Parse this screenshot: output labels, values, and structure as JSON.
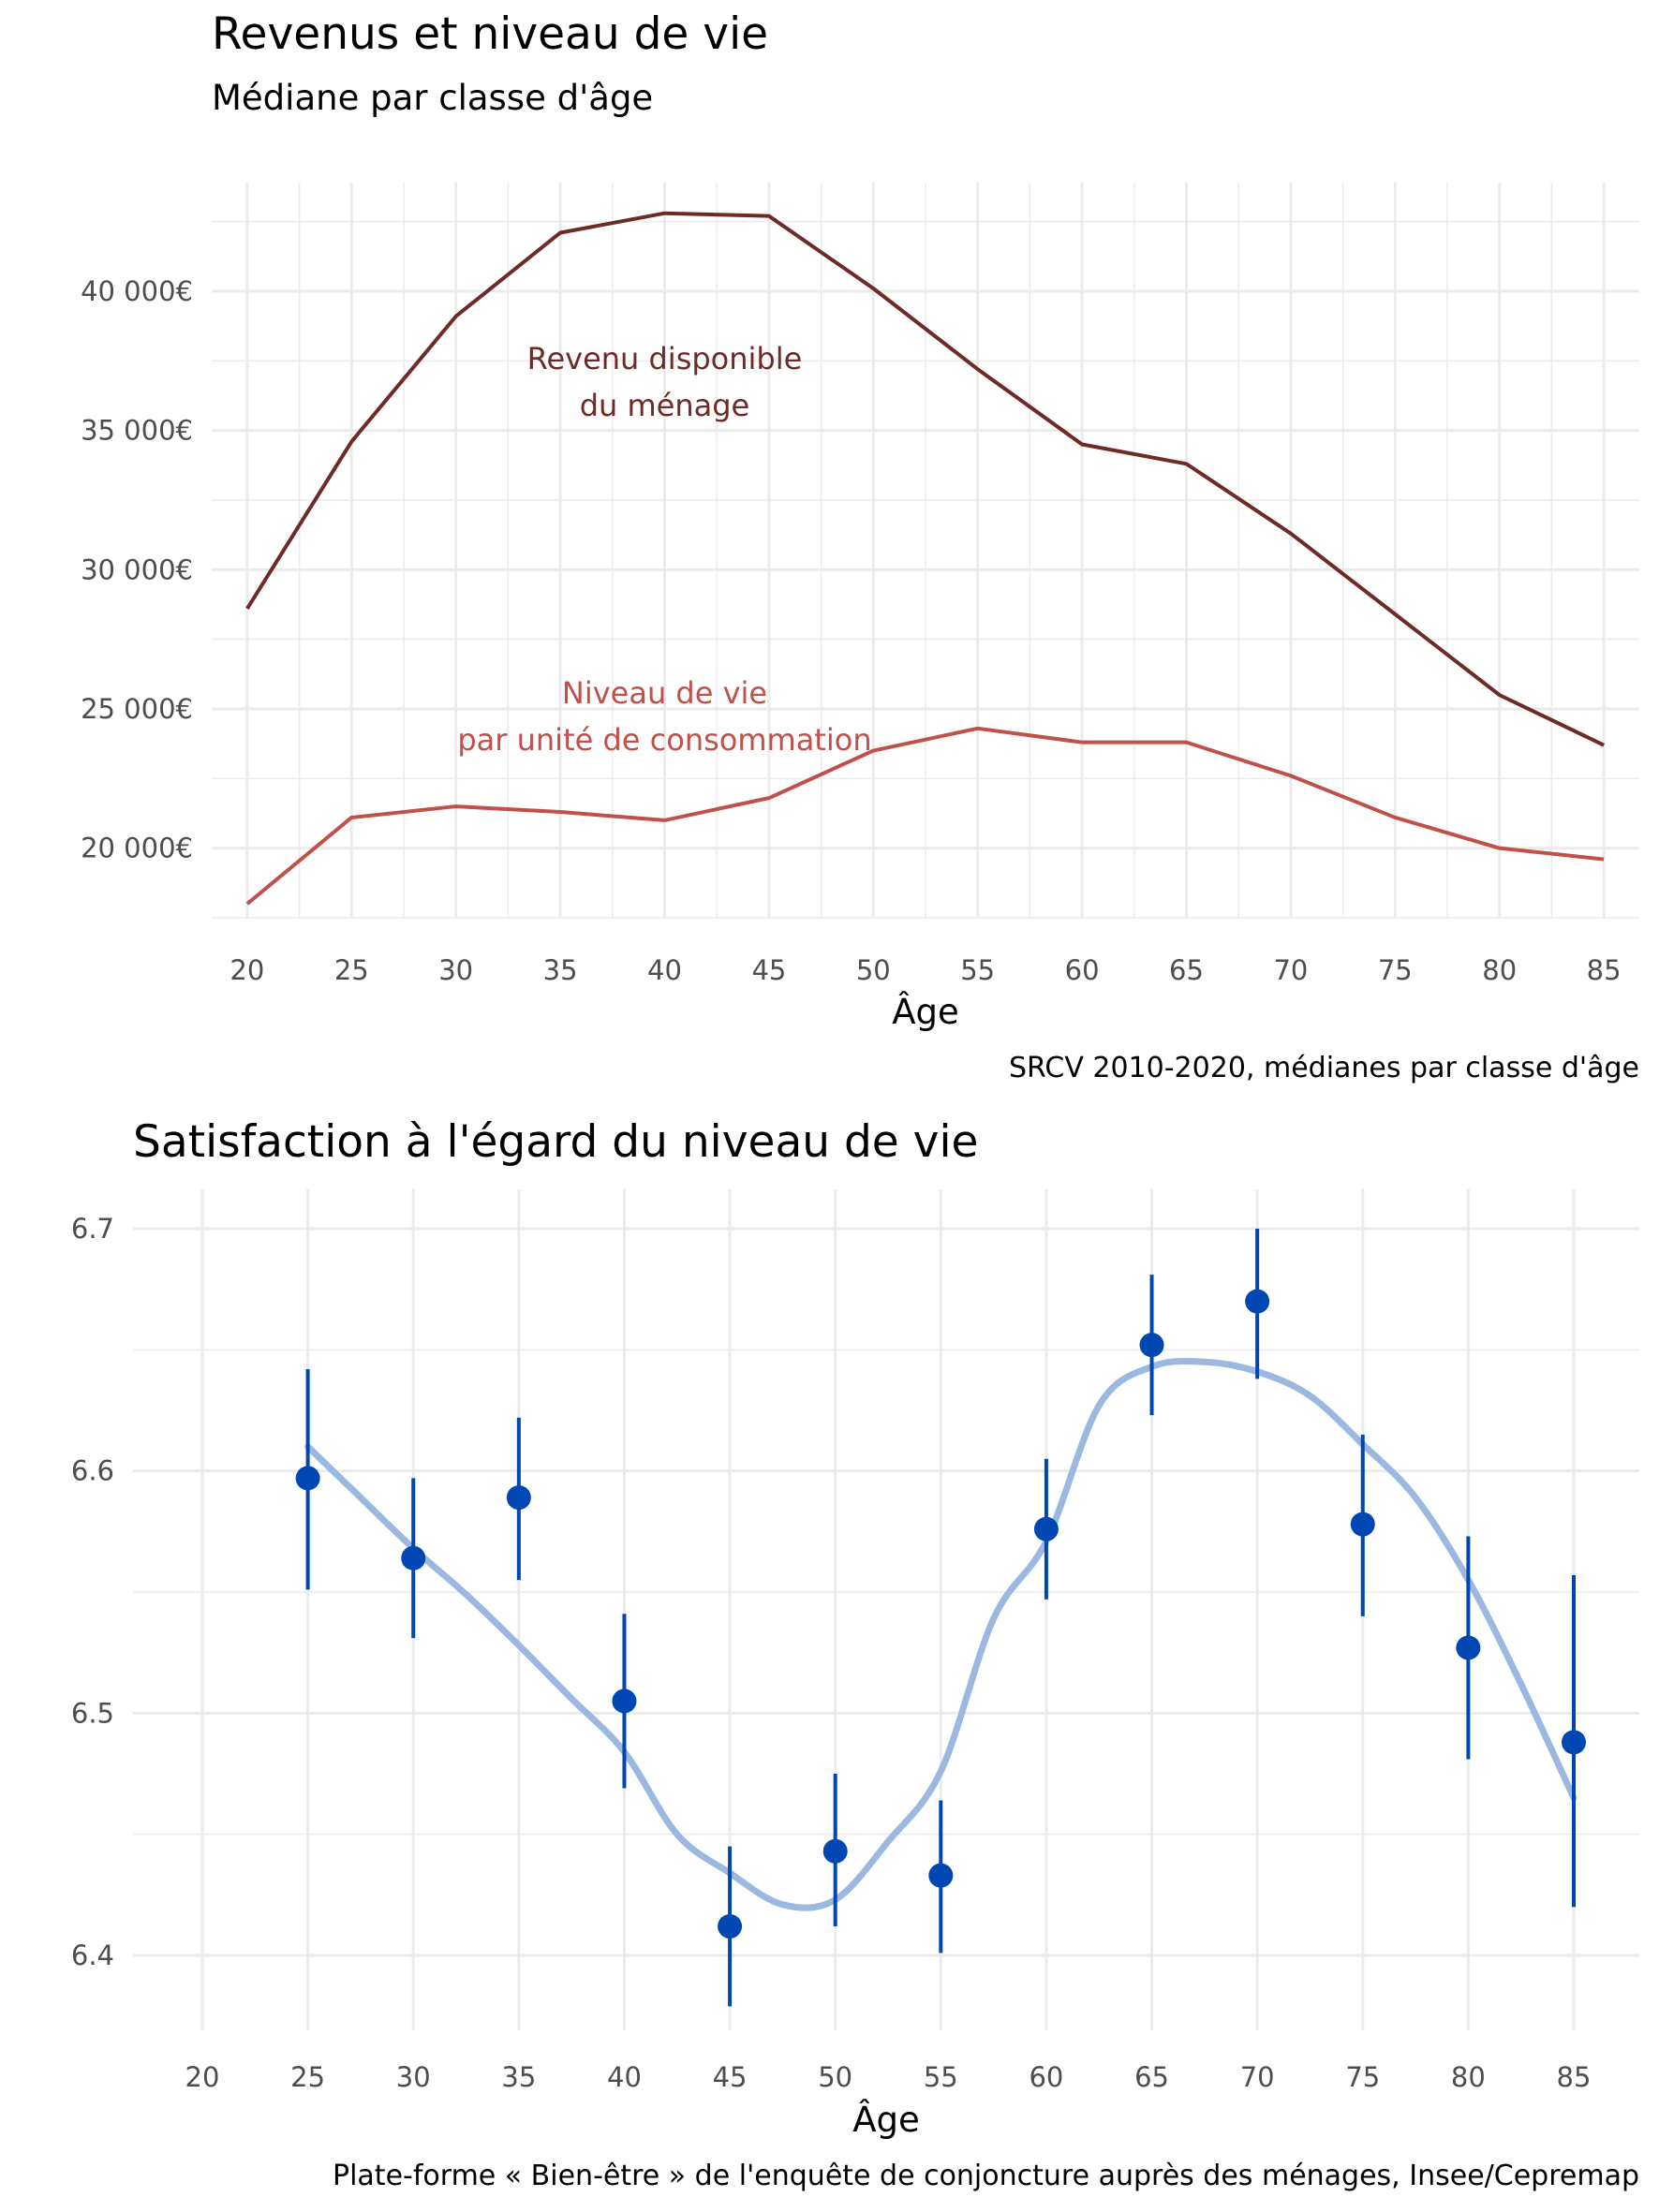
{
  "colors": {
    "revenu": "#6e2a25",
    "niveau": "#c0504a",
    "points": "#0047b3",
    "smooth": "#9bb8e0",
    "grid": "#ebebeb",
    "tick_text": "#4d4d4d"
  },
  "chart_data": [
    {
      "type": "line",
      "title": "Revenus et niveau de vie",
      "subtitle": "Médiane par classe d'âge",
      "xlabel": "Âge",
      "ylabel": "",
      "caption": "SRCV 2010-2020, médianes par classe d'âge",
      "x": [
        20,
        25,
        30,
        35,
        40,
        45,
        50,
        55,
        60,
        65,
        70,
        75,
        80,
        85
      ],
      "xlim": [
        18.3,
        86.7
      ],
      "ylim": [
        17500,
        43900
      ],
      "y_ticks": [
        20000,
        25000,
        30000,
        35000,
        40000
      ],
      "y_tick_labels": [
        "20 000€",
        "25 000€",
        "30 000€",
        "35 000€",
        "40 000€"
      ],
      "x_tick_labels": [
        "20",
        "25",
        "30",
        "35",
        "40",
        "45",
        "50",
        "55",
        "60",
        "65",
        "70",
        "75",
        "80",
        "85"
      ],
      "grid": true,
      "series": [
        {
          "name": "Revenu disponible du ménage",
          "label_lines": [
            "Revenu disponible",
            "du ménage"
          ],
          "label_at": {
            "x": 40,
            "y": 36700
          },
          "values": [
            28600,
            34600,
            39100,
            42100,
            42800,
            42700,
            40100,
            37200,
            34500,
            33800,
            31300,
            28400,
            25500,
            23700
          ]
        },
        {
          "name": "Niveau de vie par unité de consommation",
          "label_lines": [
            "Niveau de vie",
            "par unité de consommation"
          ],
          "label_at": {
            "x": 40,
            "y": 24700
          },
          "values": [
            18000,
            21100,
            21500,
            21300,
            21000,
            21800,
            23500,
            24300,
            23800,
            23800,
            22600,
            21100,
            20000,
            19600
          ]
        }
      ]
    },
    {
      "type": "scatter",
      "title": "Satisfaction à l'égard du niveau de vie",
      "xlabel": "Âge",
      "ylabel": "",
      "caption": "Plate-forme « Bien-être » de l'enquête de conjoncture auprès des ménages, Insee/Cepremap",
      "xlim": [
        20,
        85
      ],
      "ylim": [
        6.37,
        6.717
      ],
      "y_ticks": [
        6.4,
        6.5,
        6.6,
        6.7
      ],
      "y_tick_labels": [
        "6.4",
        "6.5",
        "6.6",
        "6.7"
      ],
      "x_ticks": [
        20,
        25,
        30,
        35,
        40,
        45,
        50,
        55,
        60,
        65,
        70,
        75,
        80,
        85
      ],
      "x_tick_labels": [
        "20",
        "25",
        "30",
        "35",
        "40",
        "45",
        "50",
        "55",
        "60",
        "65",
        "70",
        "75",
        "80",
        "85"
      ],
      "grid": true,
      "points": [
        {
          "x": 25,
          "y": 6.597,
          "lo": 6.551,
          "hi": 6.642
        },
        {
          "x": 30,
          "y": 6.564,
          "lo": 6.531,
          "hi": 6.597
        },
        {
          "x": 35,
          "y": 6.589,
          "lo": 6.555,
          "hi": 6.622
        },
        {
          "x": 40,
          "y": 6.505,
          "lo": 6.469,
          "hi": 6.541
        },
        {
          "x": 45,
          "y": 6.412,
          "lo": 6.379,
          "hi": 6.445
        },
        {
          "x": 50,
          "y": 6.443,
          "lo": 6.412,
          "hi": 6.475
        },
        {
          "x": 55,
          "y": 6.433,
          "lo": 6.401,
          "hi": 6.464
        },
        {
          "x": 60,
          "y": 6.576,
          "lo": 6.547,
          "hi": 6.605
        },
        {
          "x": 65,
          "y": 6.652,
          "lo": 6.623,
          "hi": 6.681
        },
        {
          "x": 70,
          "y": 6.67,
          "lo": 6.638,
          "hi": 6.7
        },
        {
          "x": 75,
          "y": 6.578,
          "lo": 6.54,
          "hi": 6.615
        },
        {
          "x": 80,
          "y": 6.527,
          "lo": 6.481,
          "hi": 6.573
        },
        {
          "x": 85,
          "y": 6.488,
          "lo": 6.42,
          "hi": 6.557
        }
      ],
      "smooth": {
        "x": [
          25,
          27.5,
          30,
          32.5,
          35,
          37.5,
          40,
          42.5,
          45,
          47.5,
          50,
          52.5,
          55,
          57.5,
          60,
          62.5,
          65,
          67.5,
          70,
          72.5,
          75,
          77.5,
          80,
          82.5,
          85
        ],
        "y": [
          6.61,
          6.589,
          6.568,
          6.549,
          6.528,
          6.506,
          6.484,
          6.45,
          6.434,
          6.421,
          6.423,
          6.447,
          6.476,
          6.539,
          6.571,
          6.627,
          6.643,
          6.645,
          6.641,
          6.631,
          6.611,
          6.589,
          6.555,
          6.512,
          6.465
        ]
      }
    }
  ]
}
